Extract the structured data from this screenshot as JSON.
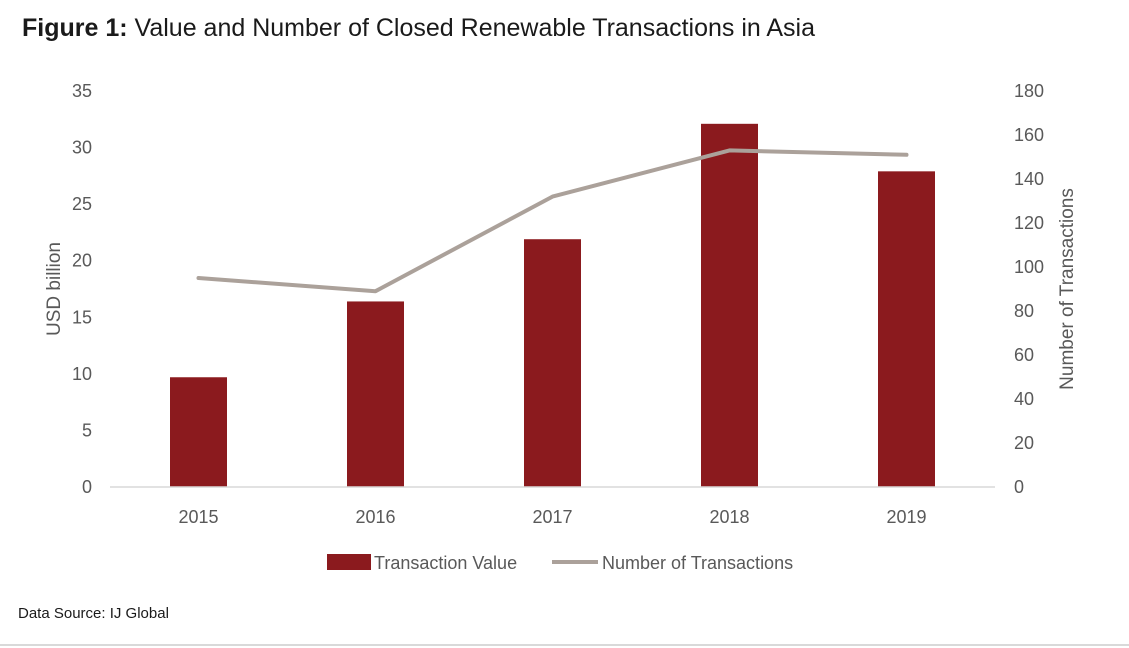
{
  "figure": {
    "label": "Figure 1",
    "separator": ":",
    "title": "Value and Number of Closed Renewable Transactions in Asia"
  },
  "source": "Data Source: IJ Global",
  "chart_data": {
    "type": "bar",
    "categories": [
      "2015",
      "2016",
      "2017",
      "2018",
      "2019"
    ],
    "series": [
      {
        "name": "Transaction Value",
        "type": "bar",
        "axis": "left",
        "color": "#8b1a1e",
        "values": [
          9.7,
          16.4,
          21.9,
          32.1,
          27.9
        ]
      },
      {
        "name": "Number of Transactions",
        "type": "line",
        "axis": "right",
        "color": "#aba19a",
        "values": [
          95,
          89,
          132,
          153,
          151
        ]
      }
    ],
    "ylabel": "USD billion",
    "ylabel_right": "Number of Transactions",
    "ylim": [
      0,
      35
    ],
    "ylim_right": [
      0,
      180
    ],
    "yticks": [
      0,
      5,
      10,
      15,
      20,
      25,
      30,
      35
    ],
    "yticks_right": [
      0,
      20,
      40,
      60,
      80,
      100,
      120,
      140,
      160,
      180
    ],
    "grid": false,
    "legend_position": "bottom-center"
  }
}
